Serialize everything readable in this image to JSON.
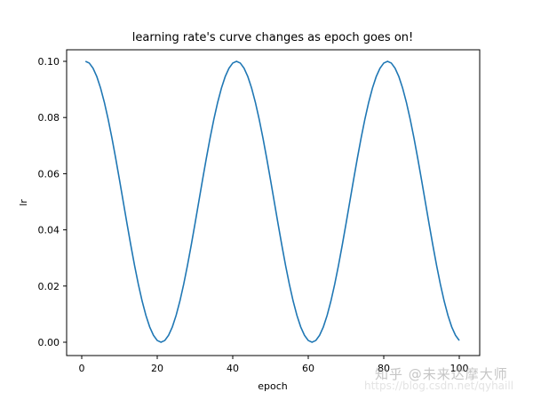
{
  "chart_data": {
    "type": "line",
    "title": "learning rate's curve changes as epoch goes on!",
    "xlabel": "epoch",
    "ylabel": "lr",
    "xlim": [
      -4,
      105
    ],
    "ylim": [
      -0.005,
      0.105
    ],
    "xticks": [
      0,
      20,
      40,
      60,
      80,
      100
    ],
    "xtick_labels": [
      "0",
      "20",
      "40",
      "60",
      "80",
      "100"
    ],
    "yticks": [
      0.0,
      0.02,
      0.04,
      0.06,
      0.08,
      0.1
    ],
    "ytick_labels": [
      "0.00",
      "0.02",
      "0.04",
      "0.06",
      "0.08",
      "0.10"
    ],
    "grid": false,
    "legend": null,
    "series": [
      {
        "name": "lr",
        "color": "#1f77b4",
        "formula": "0.05*(1+cos(pi*(epoch-1)/20))",
        "x": [
          1,
          2,
          3,
          4,
          5,
          6,
          7,
          8,
          9,
          10,
          11,
          12,
          13,
          14,
          15,
          16,
          17,
          18,
          19,
          20,
          21,
          22,
          23,
          24,
          25,
          26,
          27,
          28,
          29,
          30,
          31,
          32,
          33,
          34,
          35,
          36,
          37,
          38,
          39,
          40,
          41,
          42,
          43,
          44,
          45,
          46,
          47,
          48,
          49,
          50,
          51,
          52,
          53,
          54,
          55,
          56,
          57,
          58,
          59,
          60,
          61,
          62,
          63,
          64,
          65,
          66,
          67,
          68,
          69,
          70,
          71,
          72,
          73,
          74,
          75,
          76,
          77,
          78,
          79,
          80,
          81,
          82,
          83,
          84,
          85,
          86,
          87,
          88,
          89,
          90,
          91,
          92,
          93,
          94,
          95,
          96,
          97,
          98,
          99,
          100
        ],
        "values": [
          0.1,
          0.09938,
          0.09755,
          0.09455,
          0.09045,
          0.08536,
          0.07939,
          0.0727,
          0.06545,
          0.05782,
          0.05,
          0.04218,
          0.03455,
          0.0273,
          0.02061,
          0.01464,
          0.00955,
          0.00545,
          0.00245,
          0.00062,
          0.0,
          0.00062,
          0.00245,
          0.00545,
          0.00955,
          0.01464,
          0.02061,
          0.0273,
          0.03455,
          0.04218,
          0.05,
          0.05782,
          0.06545,
          0.0727,
          0.07939,
          0.08536,
          0.09045,
          0.09455,
          0.09755,
          0.09938,
          0.1,
          0.09938,
          0.09755,
          0.09455,
          0.09045,
          0.08536,
          0.07939,
          0.0727,
          0.06545,
          0.05782,
          0.05,
          0.04218,
          0.03455,
          0.0273,
          0.02061,
          0.01464,
          0.00955,
          0.00545,
          0.00245,
          0.00062,
          0.0,
          0.00062,
          0.00245,
          0.00545,
          0.00955,
          0.01464,
          0.02061,
          0.0273,
          0.03455,
          0.04218,
          0.05,
          0.05782,
          0.06545,
          0.0727,
          0.07939,
          0.08536,
          0.09045,
          0.09455,
          0.09755,
          0.09938,
          0.1,
          0.09938,
          0.09755,
          0.09455,
          0.09045,
          0.08536,
          0.07939,
          0.0727,
          0.06545,
          0.05782,
          0.05,
          0.04218,
          0.03455,
          0.0273,
          0.02061,
          0.01464,
          0.00955,
          0.00545,
          0.00245,
          0.00062
        ]
      }
    ]
  },
  "watermark": {
    "text": "知乎 @未来达摩大师",
    "url": "https://blog.csdn.net/qyhaill"
  }
}
